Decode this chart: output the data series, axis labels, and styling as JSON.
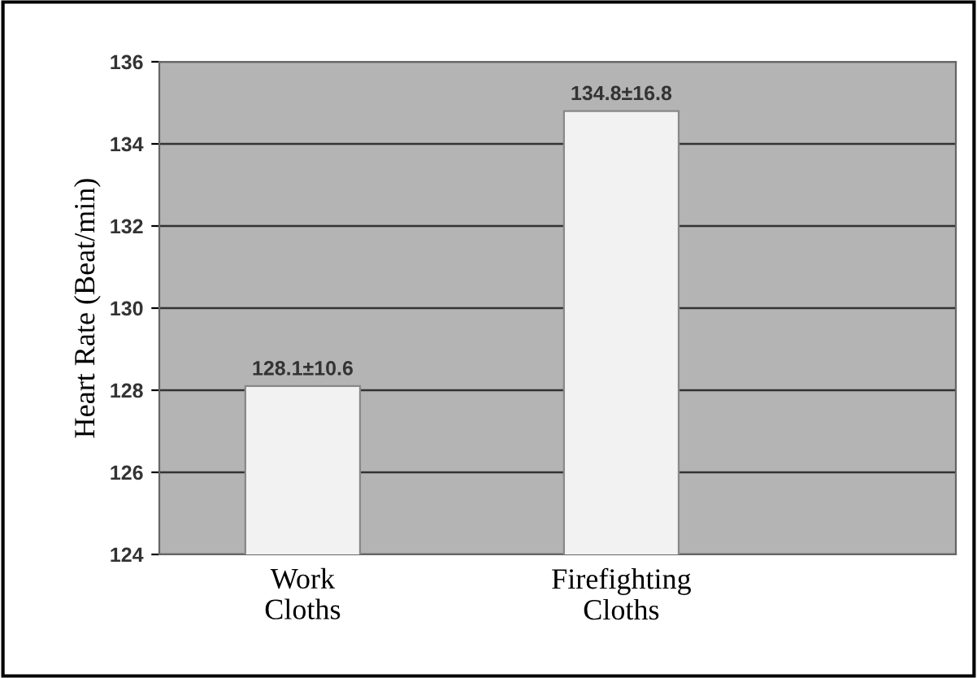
{
  "chart_data": {
    "type": "bar",
    "ylabel": "Heart Rate (Beat/min)",
    "categories": [
      "Work\nCloths",
      "Firefighting\nCloths"
    ],
    "values": [
      128.1,
      134.8
    ],
    "value_labels": [
      "128.1±10.6",
      "134.8±16.8"
    ],
    "color": "#f2f2f2",
    "ylim": [
      124,
      136
    ],
    "yticks": [
      124,
      126,
      128,
      130,
      132,
      134,
      136
    ],
    "grid": "y"
  }
}
